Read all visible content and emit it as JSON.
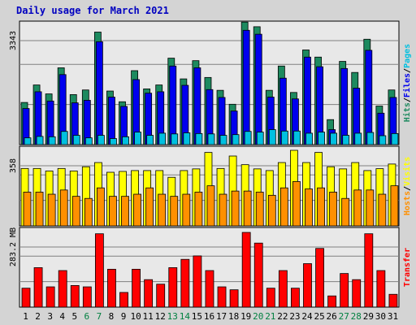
{
  "title": "Daily usage for March 2021",
  "colors": {
    "background": "#d4d4d4",
    "plot_bg": "#e8e8e8",
    "hits": "#1d8a5f",
    "files": "#0000ee",
    "pages": "#00c0e0",
    "visits": "#ffff00",
    "sites": "#ff9000",
    "kbytes": "#ff0000",
    "title": "#0000c0",
    "weekend": "#008040"
  },
  "chart_data": [
    {
      "type": "bar",
      "panel": "hits-files-pages",
      "ymax_label": "3343",
      "ymax": 3343,
      "ylim": [
        0,
        3343
      ],
      "grid": true,
      "side_labels": [
        {
          "text": "Hits",
          "color": "#1d8a5f"
        },
        {
          "text": "/",
          "color": "#000000"
        },
        {
          "text": "Files",
          "color": "#0000ee"
        },
        {
          "text": "/",
          "color": "#000000"
        },
        {
          "text": "Pages",
          "color": "#00c0e0"
        }
      ],
      "categories": [
        "1",
        "2",
        "3",
        "4",
        "5",
        "6",
        "7",
        "8",
        "9",
        "10",
        "11",
        "12",
        "13",
        "14",
        "15",
        "16",
        "17",
        "18",
        "19",
        "20",
        "21",
        "22",
        "23",
        "24",
        "25",
        "26",
        "27",
        "28",
        "29",
        "30",
        "31"
      ],
      "series": [
        {
          "name": "Hits",
          "values": [
            1180,
            1670,
            1420,
            2150,
            1400,
            1530,
            3150,
            1500,
            1200,
            2070,
            1560,
            1670,
            2420,
            1840,
            2350,
            1880,
            1520,
            1130,
            3430,
            3300,
            1520,
            2200,
            1460,
            2650,
            2450,
            700,
            2330,
            2020,
            2950,
            1080,
            1530
          ]
        },
        {
          "name": "Files",
          "values": [
            1010,
            1480,
            1220,
            1960,
            1170,
            1240,
            2880,
            1330,
            1070,
            1820,
            1440,
            1480,
            2200,
            1660,
            2150,
            1540,
            1320,
            940,
            3200,
            3090,
            1330,
            1860,
            1280,
            2450,
            2180,
            420,
            2130,
            1580,
            2640,
            880,
            1320
          ]
        },
        {
          "name": "Pages",
          "values": [
            190,
            230,
            220,
            370,
            260,
            190,
            260,
            170,
            220,
            350,
            260,
            320,
            300,
            330,
            310,
            300,
            260,
            280,
            370,
            350,
            420,
            380,
            380,
            320,
            350,
            320,
            260,
            320,
            340,
            250,
            310
          ]
        }
      ]
    },
    {
      "type": "bar",
      "panel": "visits-sites",
      "ymax_label": "358",
      "ymax": 358,
      "ylim": [
        0,
        358
      ],
      "grid": true,
      "side_labels": [
        {
          "text": "Hosts",
          "color": "#ff9000"
        },
        {
          "text": "/",
          "color": "#000000"
        },
        {
          "text": "Visits",
          "color": "#ffff00"
        }
      ],
      "categories": [
        "1",
        "2",
        "3",
        "4",
        "5",
        "6",
        "7",
        "8",
        "9",
        "10",
        "11",
        "12",
        "13",
        "14",
        "15",
        "16",
        "17",
        "18",
        "19",
        "20",
        "21",
        "22",
        "23",
        "24",
        "25",
        "26",
        "27",
        "28",
        "29",
        "30",
        "31"
      ],
      "series": [
        {
          "name": "Visits",
          "values": [
            272,
            272,
            260,
            272,
            260,
            280,
            300,
            254,
            258,
            262,
            262,
            262,
            230,
            262,
            270,
            348,
            272,
            331,
            290,
            270,
            262,
            300,
            358,
            300,
            348,
            280,
            270,
            300,
            262,
            271,
            293
          ]
        },
        {
          "name": "Hosts",
          "values": [
            160,
            160,
            150,
            170,
            140,
            130,
            180,
            140,
            140,
            150,
            180,
            150,
            140,
            150,
            160,
            190,
            150,
            165,
            165,
            160,
            145,
            180,
            210,
            175,
            180,
            160,
            130,
            170,
            170,
            150,
            190
          ]
        }
      ]
    },
    {
      "type": "bar",
      "panel": "transfer",
      "ymax_label": "283.2 MB",
      "ymax": 283.2,
      "ylim": [
        0,
        283.2
      ],
      "grid": true,
      "side_labels": [
        {
          "text": "Transfer",
          "color": "#ff0000"
        }
      ],
      "categories": [
        "1",
        "2",
        "3",
        "4",
        "5",
        "6",
        "7",
        "8",
        "9",
        "10",
        "11",
        "12",
        "13",
        "14",
        "15",
        "16",
        "17",
        "18",
        "19",
        "20",
        "21",
        "22",
        "23",
        "24",
        "25",
        "26",
        "27",
        "28",
        "29",
        "30",
        "31"
      ],
      "series": [
        {
          "name": "Transfer",
          "values": [
            71,
            148,
            76,
            137,
            81,
            76,
            275,
            142,
            55,
            142,
            103,
            86,
            148,
            179,
            192,
            137,
            76,
            65,
            280,
            240,
            71,
            137,
            71,
            163,
            220,
            42,
            126,
            103,
            275,
            137,
            48
          ]
        }
      ]
    }
  ],
  "x_labels": [
    {
      "text": "1",
      "color": "#000000"
    },
    {
      "text": "2",
      "color": "#000000"
    },
    {
      "text": "3",
      "color": "#000000"
    },
    {
      "text": "4",
      "color": "#000000"
    },
    {
      "text": "5",
      "color": "#000000"
    },
    {
      "text": "6",
      "color": "#008040"
    },
    {
      "text": "7",
      "color": "#008040"
    },
    {
      "text": "8",
      "color": "#000000"
    },
    {
      "text": "9",
      "color": "#000000"
    },
    {
      "text": "10",
      "color": "#000000"
    },
    {
      "text": "11",
      "color": "#000000"
    },
    {
      "text": "12",
      "color": "#000000"
    },
    {
      "text": "13",
      "color": "#008040"
    },
    {
      "text": "14",
      "color": "#008040"
    },
    {
      "text": "15",
      "color": "#000000"
    },
    {
      "text": "16",
      "color": "#000000"
    },
    {
      "text": "17",
      "color": "#000000"
    },
    {
      "text": "18",
      "color": "#000000"
    },
    {
      "text": "19",
      "color": "#000000"
    },
    {
      "text": "20",
      "color": "#008040"
    },
    {
      "text": "21",
      "color": "#008040"
    },
    {
      "text": "22",
      "color": "#000000"
    },
    {
      "text": "23",
      "color": "#000000"
    },
    {
      "text": "24",
      "color": "#000000"
    },
    {
      "text": "25",
      "color": "#000000"
    },
    {
      "text": "26",
      "color": "#000000"
    },
    {
      "text": "27",
      "color": "#008040"
    },
    {
      "text": "28",
      "color": "#008040"
    },
    {
      "text": "29",
      "color": "#000000"
    },
    {
      "text": "30",
      "color": "#000000"
    },
    {
      "text": "31",
      "color": "#000000"
    }
  ]
}
